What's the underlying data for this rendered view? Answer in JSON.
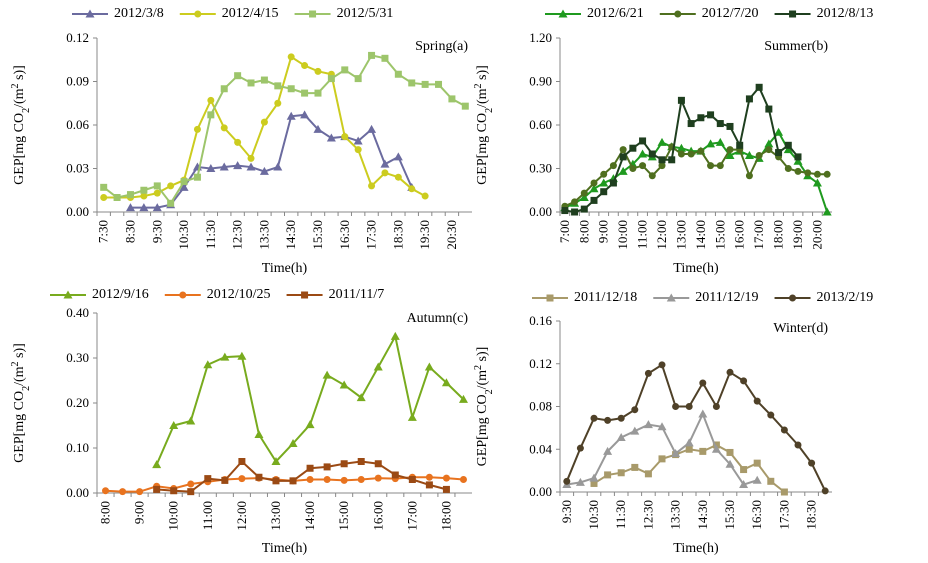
{
  "chart_data": [
    {
      "type": "line",
      "panel_label": "Spring(a)",
      "xlabel": "Time(h)",
      "ylabel": [
        "GEP[mg CO",
        "2",
        "/(m",
        "2",
        " s)]"
      ],
      "categories": [
        "7:30",
        null,
        "8:30",
        null,
        "9:30",
        null,
        "10:30",
        null,
        "11:30",
        null,
        "12:30",
        null,
        "13:30",
        null,
        "14:30",
        null,
        "15:30",
        null,
        "16:30",
        null,
        "17:30",
        null,
        "18:30",
        null,
        "19:30",
        null,
        "20:30",
        null
      ],
      "ylim": [
        0,
        0.12
      ],
      "yticks": [
        {
          "value": 0,
          "label": "0.00"
        },
        0.03,
        0.06,
        0.09,
        0.12
      ],
      "series": [
        {
          "name": "2012/3/8",
          "color": "#6b6b9f",
          "marker": "triangle",
          "values": [
            null,
            null,
            0.003,
            0.003,
            0.003,
            0.005,
            0.017,
            0.031,
            0.03,
            0.031,
            0.032,
            0.031,
            0.028,
            0.031,
            0.066,
            0.067,
            0.057,
            0.051,
            0.052,
            0.049,
            0.057,
            0.033,
            0.038,
            0.017,
            null,
            null,
            null,
            null
          ]
        },
        {
          "name": "2012/4/15",
          "color": "#cccc1f",
          "marker": "circle",
          "values": [
            0.01,
            0.01,
            0.01,
            0.011,
            0.013,
            0.018,
            0.022,
            0.057,
            0.077,
            0.058,
            0.048,
            0.037,
            0.062,
            0.075,
            0.107,
            0.101,
            0.097,
            0.095,
            0.052,
            0.043,
            0.018,
            0.027,
            0.024,
            0.016,
            0.011,
            null,
            null,
            null
          ]
        },
        {
          "name": "2012/5/31",
          "color": "#9dc56b",
          "marker": "square",
          "values": [
            0.017,
            0.01,
            0.012,
            0.015,
            0.018,
            0.006,
            0.021,
            0.024,
            0.067,
            0.085,
            0.094,
            0.089,
            0.091,
            0.087,
            0.085,
            0.082,
            0.082,
            0.092,
            0.098,
            0.092,
            0.108,
            0.106,
            0.095,
            0.089,
            0.088,
            0.088,
            0.078,
            0.073
          ]
        }
      ]
    },
    {
      "type": "line",
      "panel_label": "Summer(b)",
      "xlabel": "Time(h)",
      "ylabel": [
        "GEP[mg CO",
        "2",
        "/(m",
        "2",
        " s)]"
      ],
      "categories": [
        "7:00",
        null,
        "8:00",
        null,
        "9:00",
        null,
        "10:00",
        null,
        "11:00",
        null,
        "12:00",
        null,
        "13:00",
        null,
        "14:00",
        null,
        "15:00",
        null,
        "16:00",
        null,
        "17:00",
        null,
        "18:00",
        null,
        "19:00",
        null,
        "20:00",
        null
      ],
      "ylim": [
        0,
        1.2
      ],
      "yticks": [
        {
          "value": 0,
          "label": "0.00"
        },
        {
          "value": 0.3,
          "label": "0.30"
        },
        {
          "value": 0.6,
          "label": "0.60"
        },
        {
          "value": 0.9,
          "label": "0.90"
        },
        {
          "value": 1.2,
          "label": "1.20"
        }
      ],
      "series": [
        {
          "name": "2012/6/21",
          "color": "#1f9a1f",
          "marker": "triangle",
          "values": [
            0.03,
            0.06,
            0.1,
            0.16,
            0.2,
            0.23,
            0.28,
            0.33,
            0.4,
            0.38,
            0.48,
            0.45,
            0.44,
            0.42,
            0.42,
            0.47,
            0.48,
            0.39,
            0.42,
            0.39,
            0.37,
            0.47,
            0.55,
            0.43,
            0.35,
            0.25,
            0.2,
            0.0
          ]
        },
        {
          "name": "2012/7/20",
          "color": "#4f6f1f",
          "marker": "circle",
          "values": [
            0.04,
            0.07,
            0.13,
            0.2,
            0.26,
            0.32,
            0.43,
            0.3,
            0.32,
            0.25,
            0.32,
            0.45,
            0.4,
            0.4,
            0.42,
            0.32,
            0.32,
            0.43,
            0.43,
            0.25,
            0.39,
            0.43,
            0.38,
            0.3,
            0.28,
            0.27,
            0.26,
            0.26
          ]
        },
        {
          "name": "2012/8/13",
          "color": "#1f3f1f",
          "marker": "square",
          "values": [
            0.01,
            0.0,
            0.02,
            0.08,
            0.14,
            0.2,
            0.38,
            0.44,
            0.49,
            0.4,
            0.36,
            0.36,
            0.77,
            0.61,
            0.65,
            0.67,
            0.61,
            0.59,
            0.46,
            0.78,
            0.86,
            0.71,
            0.41,
            0.46,
            0.38,
            null,
            null,
            null
          ]
        }
      ]
    },
    {
      "type": "line",
      "panel_label": "Autumn(c)",
      "xlabel": "Time(h)",
      "ylabel": [
        "GEP[mg CO",
        "2",
        "/(m",
        "2",
        " s)]"
      ],
      "categories": [
        "8:00",
        null,
        "9:00",
        null,
        "10:00",
        null,
        "11:00",
        null,
        "12:00",
        null,
        "13:00",
        null,
        "14:00",
        null,
        "15:00",
        null,
        "16:00",
        null,
        "17:00",
        null,
        "18:00",
        null
      ],
      "ylim": [
        0,
        0.4
      ],
      "yticks": [
        {
          "value": 0,
          "label": "0.00"
        },
        {
          "value": 0.1,
          "label": "0.10"
        },
        {
          "value": 0.2,
          "label": "0.20"
        },
        {
          "value": 0.3,
          "label": "0.30"
        },
        {
          "value": 0.4,
          "label": "0.40"
        }
      ],
      "series": [
        {
          "name": "2012/9/16",
          "color": "#78ab1e",
          "marker": "triangle",
          "values": [
            null,
            null,
            null,
            0.063,
            0.15,
            0.16,
            0.285,
            0.302,
            0.304,
            0.13,
            0.07,
            0.11,
            0.152,
            0.262,
            0.24,
            0.212,
            0.28,
            0.348,
            0.168,
            0.28,
            0.245,
            0.208
          ]
        },
        {
          "name": "2012/10/25",
          "color": "#e8731f",
          "marker": "circle",
          "values": [
            0.005,
            0.003,
            0.003,
            0.015,
            0.01,
            0.02,
            0.025,
            0.03,
            0.032,
            0.033,
            0.03,
            0.027,
            0.03,
            0.03,
            0.028,
            0.03,
            0.033,
            0.032,
            0.035,
            0.035,
            0.033,
            0.03
          ]
        },
        {
          "name": "2011/11/7",
          "color": "#9b4a14",
          "marker": "square",
          "values": [
            null,
            null,
            null,
            0.008,
            0.005,
            0.003,
            0.032,
            0.028,
            0.07,
            0.035,
            0.027,
            0.027,
            0.055,
            0.058,
            0.065,
            0.07,
            0.065,
            0.04,
            0.03,
            0.018,
            0.008,
            null
          ]
        }
      ]
    },
    {
      "type": "line",
      "panel_label": "Winter(d)",
      "xlabel": "Time(h)",
      "ylabel": [
        "GEP[mg CO",
        "2",
        "/(m",
        "2",
        " s)]"
      ],
      "categories": [
        "9:30",
        null,
        "10:30",
        null,
        "11:30",
        null,
        "12:30",
        null,
        "13:30",
        null,
        "14:30",
        null,
        "15:30",
        null,
        "16:30",
        null,
        "17:30",
        null,
        "18:30",
        null
      ],
      "ylim": [
        0,
        0.16
      ],
      "yticks": [
        {
          "value": 0,
          "label": "0.00"
        },
        0.04,
        0.08,
        0.12,
        0.16
      ],
      "series": [
        {
          "name": "2011/12/18",
          "color": "#a89a6a",
          "marker": "square",
          "values": [
            null,
            null,
            0.008,
            0.016,
            0.018,
            0.023,
            0.017,
            0.031,
            0.035,
            0.04,
            0.038,
            0.044,
            0.037,
            0.021,
            0.027,
            0.01,
            0.0,
            null,
            null,
            null
          ]
        },
        {
          "name": "2011/12/19",
          "color": "#999999",
          "marker": "triangle",
          "values": [
            0.007,
            0.009,
            0.013,
            0.038,
            0.051,
            0.057,
            0.063,
            0.061,
            0.036,
            0.046,
            0.073,
            0.04,
            0.026,
            0.007,
            0.011,
            null,
            null,
            null,
            null,
            null
          ]
        },
        {
          "name": "2013/2/19",
          "color": "#4f4128",
          "marker": "circle",
          "values": [
            0.01,
            0.041,
            0.069,
            0.067,
            0.069,
            0.077,
            0.111,
            0.119,
            0.08,
            0.08,
            0.102,
            0.08,
            0.112,
            0.104,
            0.085,
            0.072,
            0.058,
            0.044,
            0.027,
            0.001
          ]
        }
      ]
    }
  ]
}
